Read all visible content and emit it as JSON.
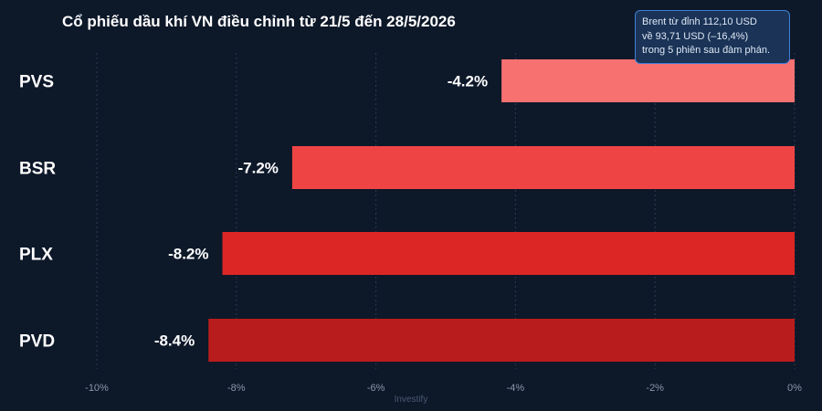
{
  "chart_data": {
    "type": "bar",
    "orientation": "horizontal",
    "title": "Cổ phiếu dầu khí VN điều chỉnh từ 21/5 đến 28/5/2026",
    "categories": [
      "PVS",
      "BSR",
      "PLX",
      "PVD"
    ],
    "values": [
      -4.2,
      -7.2,
      -8.2,
      -8.4
    ],
    "data_labels": [
      "-4.2%",
      "-7.2%",
      "-8.2%",
      "-8.4%"
    ],
    "bar_colors": [
      "#f87171",
      "#ef4444",
      "#dc2626",
      "#b91c1c"
    ],
    "xlim": [
      -10,
      0
    ],
    "x_ticks": [
      -10,
      -8,
      -6,
      -4,
      -2,
      0
    ],
    "x_tick_labels": [
      "-10%",
      "-8%",
      "-6%",
      "-4%",
      "-2%",
      "0%"
    ],
    "grid": true,
    "annotation": {
      "lines": [
        "Brent từ đỉnh 112,10 USD",
        "về 93,71 USD (–16,4%)",
        "trong 5 phiên sau đàm phán."
      ]
    },
    "watermark": "Investify"
  }
}
